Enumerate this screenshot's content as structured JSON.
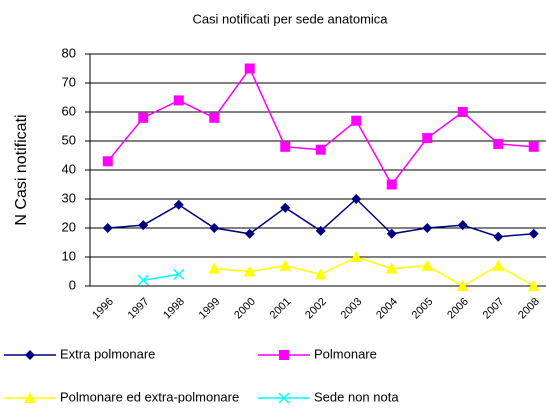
{
  "chart_data": {
    "type": "line",
    "title": "Casi notificati per sede anatomica",
    "y_label": "N Casi notificati",
    "categories": [
      "1996",
      "1997",
      "1998",
      "1999",
      "2000",
      "2001",
      "2002",
      "2003",
      "2004",
      "2005",
      "2006",
      "2007",
      "2008"
    ],
    "series": [
      {
        "name": "Extra polmonare",
        "color": "#000080",
        "marker": "diamond",
        "values": [
          20,
          21,
          28,
          20,
          18,
          27,
          19,
          30,
          18,
          20,
          21,
          17,
          18
        ]
      },
      {
        "name": "Polmonare",
        "color": "#ff00ff",
        "marker": "square",
        "values": [
          43,
          58,
          64,
          58,
          75,
          48,
          47,
          57,
          35,
          51,
          60,
          49,
          48
        ]
      },
      {
        "name": "Polmonare ed extra-polmonare",
        "color": "#ffff00",
        "marker": "triangle",
        "values": [
          null,
          null,
          null,
          6,
          5,
          7,
          4,
          10,
          6,
          7,
          0,
          7,
          0
        ]
      },
      {
        "name": "Sede non nota",
        "color": "#00ffff",
        "marker": "x",
        "values": [
          null,
          2,
          4,
          null,
          null,
          null,
          null,
          null,
          null,
          null,
          null,
          null,
          null
        ]
      }
    ],
    "ylim": [
      0,
      80
    ],
    "yticks": [
      0,
      10,
      20,
      30,
      40,
      50,
      60,
      70,
      80
    ],
    "grid": true
  }
}
